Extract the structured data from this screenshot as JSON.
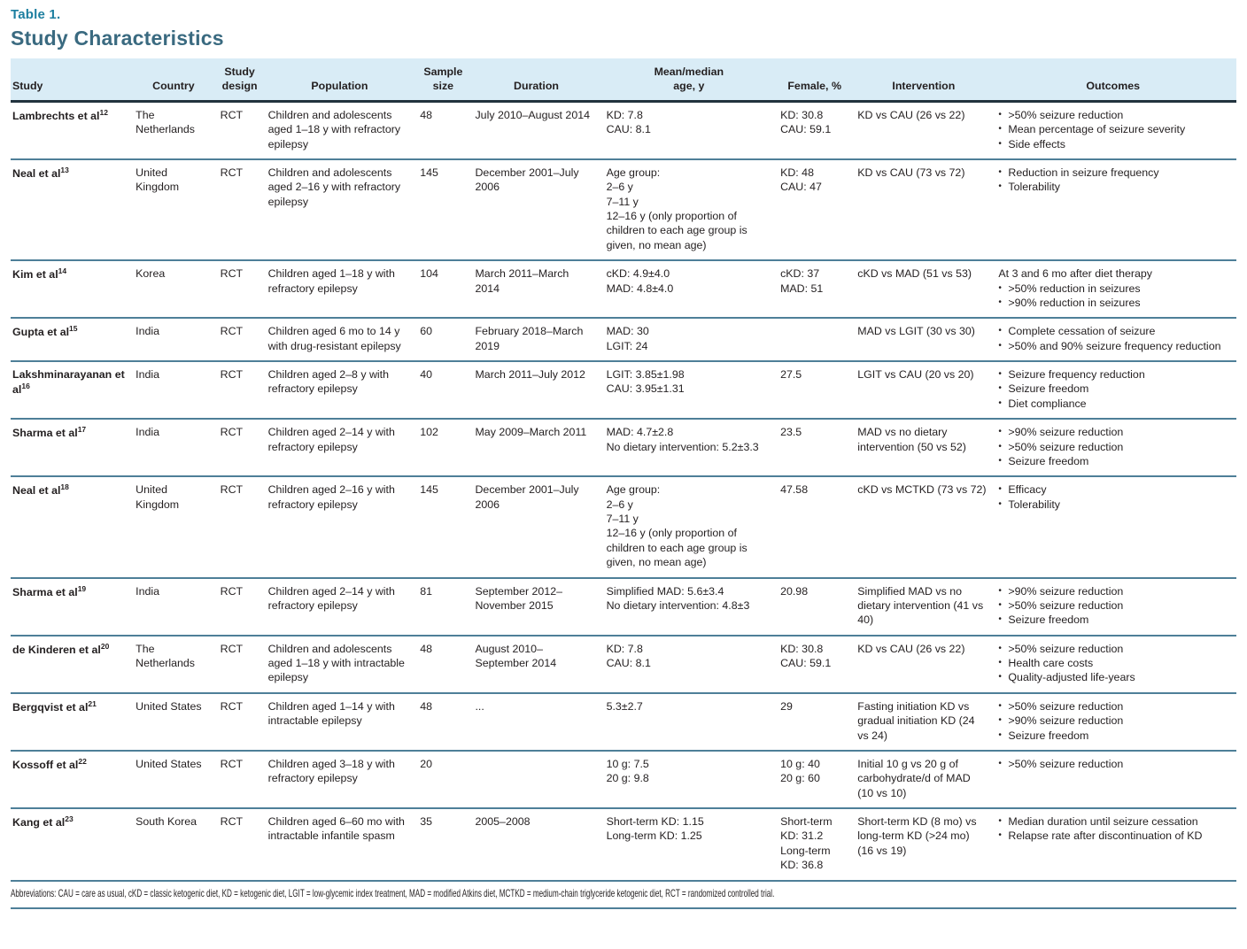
{
  "page": {
    "table_label": "Table 1.",
    "title": "Study Characteristics",
    "abbreviations": "Abbreviations: CAU = care as usual, cKD = classic ketogenic diet, KD = ketogenic diet, LGIT = low-glycemic index treatment, MAD = modified Atkins diet, MCTKD = medium-chain triglyceride ketogenic diet, RCT = randomized controlled trial.",
    "colors": {
      "label_teal": "#1d7fa0",
      "title_slate": "#3a6a80",
      "header_background": "#d9ecf6",
      "row_divider": "#4e7f98",
      "header_rule": "#22333e",
      "body_text": "#231f20"
    }
  },
  "table": {
    "columns": [
      {
        "key": "study",
        "label": "Study"
      },
      {
        "key": "country",
        "label": "Country"
      },
      {
        "key": "design",
        "label": "Study\ndesign"
      },
      {
        "key": "population",
        "label": "Population"
      },
      {
        "key": "sample",
        "label": "Sample\nsize"
      },
      {
        "key": "duration",
        "label": "Duration"
      },
      {
        "key": "age",
        "label": "Mean/median\nage, y"
      },
      {
        "key": "female",
        "label": "Female, %"
      },
      {
        "key": "intervention",
        "label": "Intervention"
      },
      {
        "key": "outcomes",
        "label": "Outcomes"
      }
    ],
    "rows": [
      {
        "study": "Lambrechts et al",
        "sup": "12",
        "country": "The Netherlands",
        "design": "RCT",
        "population": "Children and adolescents aged 1–18 y with refractory epilepsy",
        "sample": "48",
        "duration": "July 2010–August 2014",
        "age": "KD: 7.8\nCAU: 8.1",
        "female": "KD: 30.8\nCAU: 59.1",
        "intervention": "KD vs CAU (26 vs 22)",
        "outcomes_prefix": "",
        "outcomes": [
          ">50% seizure reduction",
          "Mean percentage of seizure severity",
          "Side effects"
        ]
      },
      {
        "study": "Neal et al",
        "sup": "13",
        "country": "United Kingdom",
        "design": "RCT",
        "population": "Children and adolescents aged 2–16 y with refractory epilepsy",
        "sample": "145",
        "duration": "December 2001–July 2006",
        "age": "Age group:\n2–6 y\n7–11 y\n12–16 y (only proportion of children to each age group is given, no mean age)",
        "female": "KD: 48\nCAU: 47",
        "intervention": "KD vs CAU (73 vs 72)",
        "outcomes_prefix": "",
        "outcomes": [
          "Reduction in seizure frequency",
          "Tolerability"
        ]
      },
      {
        "study": "Kim et al",
        "sup": "14",
        "country": "Korea",
        "design": "RCT",
        "population": "Children aged 1–18 y with refractory epilepsy",
        "sample": "104",
        "duration": "March 2011–March 2014",
        "age": "cKD: 4.9±4.0\nMAD: 4.8±4.0",
        "female": "cKD: 37\nMAD: 51",
        "intervention": "cKD vs MAD (51 vs 53)",
        "outcomes_prefix": "At 3 and 6 mo after diet therapy",
        "outcomes": [
          ">50% reduction in seizures",
          ">90% reduction in seizures"
        ]
      },
      {
        "study": "Gupta et al",
        "sup": "15",
        "country": "India",
        "design": "RCT",
        "population": "Children aged 6 mo to 14 y with drug-resistant epilepsy",
        "sample": "60",
        "duration": "February 2018–March 2019",
        "age": "MAD: 30\nLGIT: 24",
        "female": "",
        "intervention": "MAD vs LGIT (30 vs 30)",
        "outcomes_prefix": "",
        "outcomes": [
          "Complete cessation of seizure",
          ">50% and 90% seizure frequency reduction"
        ]
      },
      {
        "study": "Lakshminarayanan et al",
        "sup": "16",
        "country": "India",
        "design": "RCT",
        "population": "Children aged 2–8 y with refractory epilepsy",
        "sample": "40",
        "duration": "March 2011–July 2012",
        "age": "LGIT: 3.85±1.98\nCAU: 3.95±1.31",
        "female": "27.5",
        "intervention": "LGIT vs CAU (20 vs 20)",
        "outcomes_prefix": "",
        "outcomes": [
          "Seizure frequency reduction",
          "Seizure freedom",
          "Diet compliance"
        ]
      },
      {
        "study": "Sharma et al",
        "sup": "17",
        "country": "India",
        "design": "RCT",
        "population": "Children aged 2–14 y with refractory epilepsy",
        "sample": "102",
        "duration": "May 2009–March 2011",
        "age": "MAD: 4.7±2.8\nNo dietary intervention: 5.2±3.3",
        "female": "23.5",
        "intervention": "MAD vs no dietary intervention (50 vs 52)",
        "outcomes_prefix": "",
        "outcomes": [
          ">90% seizure reduction",
          ">50% seizure reduction",
          "Seizure freedom"
        ]
      },
      {
        "study": "Neal et al",
        "sup": "18",
        "country": "United Kingdom",
        "design": "RCT",
        "population": "Children aged 2–16 y with refractory epilepsy",
        "sample": "145",
        "duration": "December 2001–July 2006",
        "age": "Age group:\n2–6 y\n7–11 y\n12–16 y (only proportion of children to each age group is given, no mean age)",
        "female": "47.58",
        "intervention": "cKD vs MCTKD (73 vs 72)",
        "outcomes_prefix": "",
        "outcomes": [
          "Efficacy",
          "Tolerability"
        ]
      },
      {
        "study": "Sharma et al",
        "sup": "19",
        "country": "India",
        "design": "RCT",
        "population": "Children aged 2–14 y with refractory epilepsy",
        "sample": "81",
        "duration": "September 2012–November 2015",
        "age": "Simplified MAD: 5.6±3.4\nNo dietary intervention: 4.8±3",
        "female": "20.98",
        "intervention": "Simplified MAD vs no dietary intervention (41 vs 40)",
        "outcomes_prefix": "",
        "outcomes": [
          ">90% seizure reduction",
          ">50% seizure reduction",
          "Seizure freedom"
        ]
      },
      {
        "study": "de Kinderen et al",
        "sup": "20",
        "country": "The Netherlands",
        "design": "RCT",
        "population": "Children and adolescents aged 1–18 y with intractable epilepsy",
        "sample": "48",
        "duration": "August 2010–September 2014",
        "age": "KD: 7.8\nCAU: 8.1",
        "female": "KD: 30.8\nCAU: 59.1",
        "intervention": "KD vs CAU (26 vs 22)",
        "outcomes_prefix": "",
        "outcomes": [
          ">50% seizure reduction",
          "Health care costs",
          "Quality-adjusted life-years"
        ]
      },
      {
        "study": "Bergqvist et al",
        "sup": "21",
        "country": "United States",
        "design": "RCT",
        "population": "Children aged 1–14 y with intractable epilepsy",
        "sample": "48",
        "duration": "...",
        "age": "5.3±2.7",
        "female": "29",
        "intervention": "Fasting initiation KD vs gradual initiation KD (24 vs 24)",
        "outcomes_prefix": "",
        "outcomes": [
          ">50% seizure reduction",
          ">90% seizure reduction",
          "Seizure freedom"
        ]
      },
      {
        "study": "Kossoff et al",
        "sup": "22",
        "country": "United States",
        "design": "RCT",
        "population": "Children aged 3–18 y with refractory epilepsy",
        "sample": "20",
        "duration": "",
        "age": "10 g: 7.5\n20 g: 9.8",
        "female": "10 g: 40\n20 g: 60",
        "intervention": "Initial 10 g vs 20 g of carbohydrate/d of MAD (10 vs 10)",
        "outcomes_prefix": "",
        "outcomes": [
          ">50% seizure reduction"
        ]
      },
      {
        "study": "Kang et al",
        "sup": "23",
        "country": "South Korea",
        "design": "RCT",
        "population": "Children aged 6–60 mo with intractable infantile spasm",
        "sample": "35",
        "duration": "2005–2008",
        "age": "Short-term KD: 1.15\nLong-term KD: 1.25",
        "female": "Short-term KD: 31.2\nLong-term KD: 36.8",
        "intervention": "Short-term KD (8 mo) vs long-term KD (>24 mo) (16 vs 19)",
        "outcomes_prefix": "",
        "outcomes": [
          "Median duration until seizure cessation",
          "Relapse rate after discontinuation of KD"
        ]
      }
    ]
  }
}
